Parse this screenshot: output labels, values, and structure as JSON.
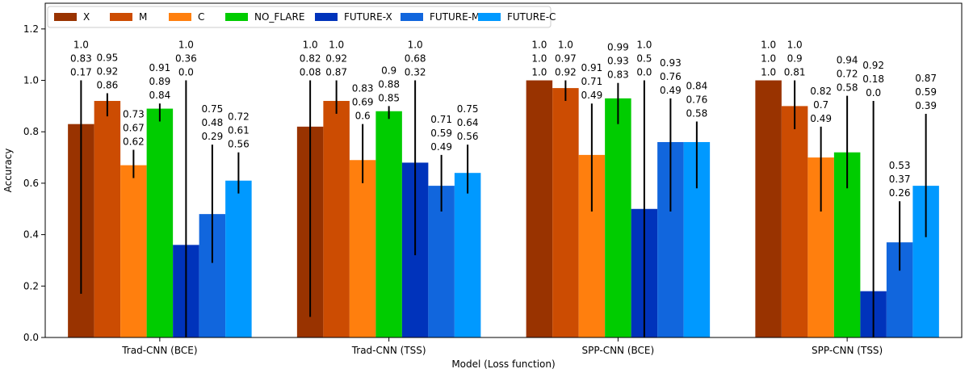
{
  "chart_data": {
    "type": "bar",
    "xlabel": "Model (Loss function)",
    "ylabel": "Accuracy",
    "ylim": [
      0,
      1.3
    ],
    "yticks": [
      0.0,
      0.2,
      0.4,
      0.6,
      0.8,
      1.0,
      1.2
    ],
    "ytick_labels": [
      "0.0",
      "0.2",
      "0.4",
      "0.6",
      "0.8",
      "1.0",
      "1.2"
    ],
    "legend_position": "top-left",
    "legend_columns": 7,
    "grid": false,
    "error_bar_color": "#000000",
    "categories": [
      "Trad-CNN (BCE)",
      "Trad-CNN (TSS)",
      "SPP-CNN (BCE)",
      "SPP-CNN (TSS)"
    ],
    "series": [
      {
        "name": "X",
        "color": "#993300",
        "values": [
          0.83,
          0.82,
          1.0,
          1.0
        ],
        "upper": [
          1.0,
          1.0,
          1.0,
          1.0
        ],
        "lower": [
          0.17,
          0.08,
          1.0,
          1.0
        ],
        "labels": [
          [
            "1.0",
            "0.83",
            "0.17"
          ],
          [
            "1.0",
            "0.82",
            "0.08"
          ],
          [
            "1.0",
            "1.0",
            "1.0"
          ],
          [
            "1.0",
            "1.0",
            "1.0"
          ]
        ]
      },
      {
        "name": "M",
        "color": "#CC4C02",
        "values": [
          0.92,
          0.92,
          0.97,
          0.9
        ],
        "upper": [
          0.95,
          1.0,
          1.0,
          1.0
        ],
        "lower": [
          0.86,
          0.87,
          0.92,
          0.81
        ],
        "labels": [
          [
            "0.95",
            "0.92",
            "0.86"
          ],
          [
            "1.0",
            "0.92",
            "0.87"
          ],
          [
            "1.0",
            "0.97",
            "0.92"
          ],
          [
            "1.0",
            "0.9",
            "0.81"
          ]
        ]
      },
      {
        "name": "C",
        "color": "#FF7F0E",
        "values": [
          0.67,
          0.69,
          0.71,
          0.7
        ],
        "upper": [
          0.73,
          0.83,
          0.91,
          0.82
        ],
        "lower": [
          0.62,
          0.6,
          0.49,
          0.49
        ],
        "labels": [
          [
            "0.73",
            "0.67",
            "0.62"
          ],
          [
            "0.83",
            "0.69",
            "0.6"
          ],
          [
            "0.91",
            "0.71",
            "0.49"
          ],
          [
            "0.82",
            "0.7",
            "0.49"
          ]
        ]
      },
      {
        "name": "NO_FLARE",
        "color": "#00CC00",
        "values": [
          0.89,
          0.88,
          0.93,
          0.72
        ],
        "upper": [
          0.91,
          0.9,
          0.99,
          0.94
        ],
        "lower": [
          0.84,
          0.85,
          0.83,
          0.58
        ],
        "labels": [
          [
            "0.91",
            "0.89",
            "0.84"
          ],
          [
            "0.9",
            "0.88",
            "0.85"
          ],
          [
            "0.99",
            "0.93",
            "0.83"
          ],
          [
            "0.94",
            "0.72",
            "0.58"
          ]
        ]
      },
      {
        "name": "FUTURE-X",
        "color": "#0033BB",
        "values": [
          0.36,
          0.68,
          0.5,
          0.18
        ],
        "upper": [
          1.0,
          1.0,
          1.0,
          0.92
        ],
        "lower": [
          0.0,
          0.32,
          0.0,
          0.0
        ],
        "labels": [
          [
            "1.0",
            "0.36",
            "0.0"
          ],
          [
            "1.0",
            "0.68",
            "0.32"
          ],
          [
            "1.0",
            "0.5",
            "0.0"
          ],
          [
            "0.92",
            "0.18",
            "0.0"
          ]
        ]
      },
      {
        "name": "FUTURE-M",
        "color": "#1166DD",
        "values": [
          0.48,
          0.59,
          0.76,
          0.37
        ],
        "upper": [
          0.75,
          0.71,
          0.93,
          0.53
        ],
        "lower": [
          0.29,
          0.49,
          0.49,
          0.26
        ],
        "labels": [
          [
            "0.75",
            "0.48",
            "0.29"
          ],
          [
            "0.71",
            "0.59",
            "0.49"
          ],
          [
            "0.93",
            "0.76",
            "0.49"
          ],
          [
            "0.53",
            "0.37",
            "0.26"
          ]
        ]
      },
      {
        "name": "FUTURE-C",
        "color": "#0099FF",
        "values": [
          0.61,
          0.64,
          0.76,
          0.59
        ],
        "upper": [
          0.72,
          0.75,
          0.84,
          0.87
        ],
        "lower": [
          0.56,
          0.56,
          0.58,
          0.39
        ],
        "labels": [
          [
            "0.72",
            "0.61",
            "0.56"
          ],
          [
            "0.75",
            "0.64",
            "0.56"
          ],
          [
            "0.84",
            "0.76",
            "0.58"
          ],
          [
            "0.87",
            "0.59",
            "0.39"
          ]
        ]
      }
    ]
  }
}
